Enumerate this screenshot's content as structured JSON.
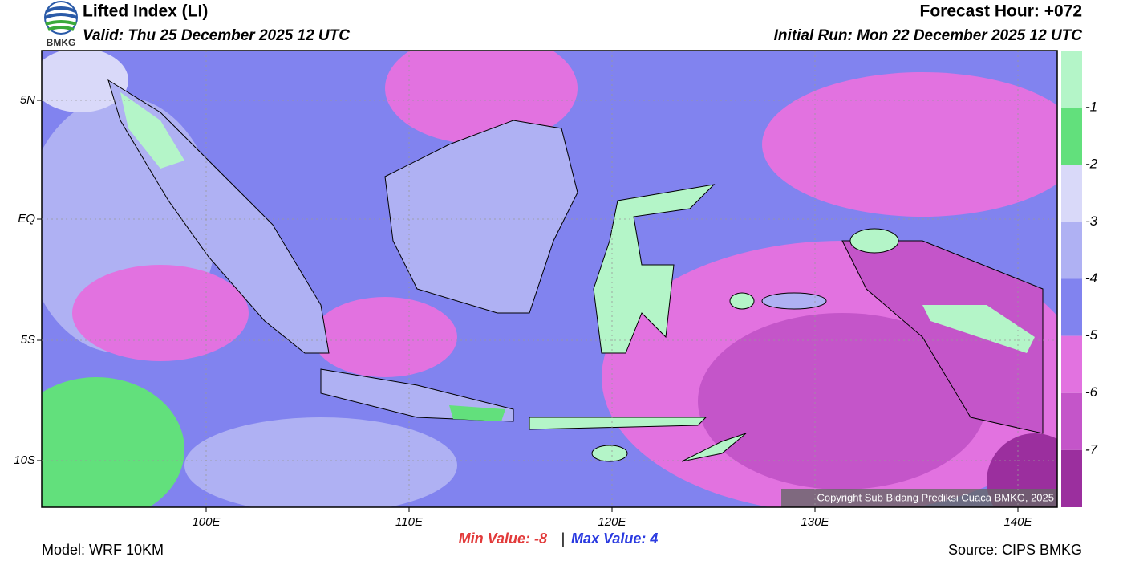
{
  "header": {
    "logo": "BMKG",
    "title": "Lifted Index (LI)",
    "valid": "Valid: Thu 25 December 2025 12 UTC",
    "forecast_hour": "Forecast Hour: +072",
    "initial_run": "Initial Run: Mon 22 December 2025 12 UTC"
  },
  "map": {
    "lat_labels": [
      "5N",
      "EQ",
      "5S",
      "10S"
    ],
    "lon_labels": [
      "100E",
      "110E",
      "120E",
      "130E",
      "140E"
    ],
    "copyright": "Copyright Sub Bidang Prediksi Cuaca BMKG, 2025"
  },
  "legend": {
    "colors": [
      "#b4f5c8",
      "#62e07c",
      "#d9d9f9",
      "#afb1f3",
      "#8183ef",
      "#e272e0",
      "#c455c9",
      "#9b2f9e"
    ],
    "labels": [
      "-1",
      "-2",
      "-3",
      "-4",
      "-5",
      "-6",
      "-7"
    ]
  },
  "footer": {
    "min_label": "Min Value:",
    "min_value": -8,
    "separator": "|",
    "max_label": "Max Value:",
    "max_value": 4,
    "model": "Model: WRF 10KM",
    "source": "Source: CIPS BMKG"
  }
}
